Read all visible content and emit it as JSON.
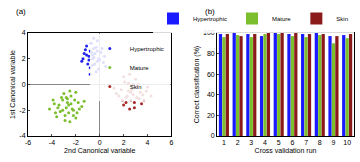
{
  "chart_data": [
    {
      "type": "scatter",
      "title": "(a)",
      "x_label": "2nd Canonical variable",
      "y_label": "1st Canonical variable",
      "xlim": [
        -6,
        6
      ],
      "xticks": [
        -6,
        -4,
        -2,
        0,
        2,
        4,
        6
      ],
      "ylim": [
        -4,
        4
      ],
      "yticks": [
        -4,
        -2,
        0,
        2,
        4
      ],
      "legend": "upper right",
      "grid": false,
      "series": [
        {
          "name": "Hypertrophic",
          "color": "#2222ee",
          "x": [
            -0.5,
            -0.8,
            -0.2,
            -1.1,
            0.1,
            -0.6,
            -0.9,
            -0.3,
            0.3,
            -1.4,
            -0.7,
            -0.4,
            -0.1,
            -1.0,
            -0.5,
            0.4,
            -1.2,
            -0.8,
            -0.2,
            -0.6,
            0.0,
            -0.9,
            -0.3,
            -1.5,
            -0.7,
            0.2,
            -0.4,
            -1.1,
            -0.6,
            -0.2,
            -0.8,
            0.5,
            -1.3,
            -0.5,
            -0.1
          ],
          "y": [
            2.1,
            2.6,
            1.8,
            2.3,
            2.5,
            1.5,
            1.9,
            2.9,
            1.7,
            2.0,
            3.2,
            2.4,
            1.2,
            1.6,
            2.8,
            2.2,
            2.7,
            1.3,
            3.4,
            2.0,
            1.9,
            2.2,
            1.0,
            1.8,
            2.5,
            2.8,
            1.6,
            3.0,
            2.3,
            2.6,
            0.8,
            1.4,
            2.4,
            3.6,
            2.0
          ]
        },
        {
          "name": "Mature",
          "color": "#7cbf2e",
          "x": [
            -2.6,
            -3.1,
            -2.2,
            -3.5,
            -1.8,
            -2.9,
            -2.4,
            -3.8,
            -2.0,
            -2.7,
            -3.3,
            -1.5,
            -2.5,
            -3.0,
            -4.2,
            -2.1,
            -2.8,
            -3.6,
            -1.9,
            -2.4,
            -3.2,
            -2.6,
            -1.3,
            -3.9,
            -2.3,
            -2.9,
            -3.4,
            -2.0,
            -2.7,
            -3.1,
            -1.7,
            -2.5,
            -3.7,
            -2.2,
            -2.8
          ],
          "y": [
            -1.6,
            -1.2,
            -2.0,
            -1.8,
            -1.4,
            -2.4,
            -0.9,
            -1.5,
            -2.6,
            -1.1,
            -2.1,
            -1.7,
            -2.9,
            -0.7,
            -1.9,
            -1.2,
            -1.8,
            -2.5,
            -2.2,
            -1.5,
            -1.0,
            -2.2,
            -1.3,
            -1.2,
            -1.9,
            -2.8,
            -1.6,
            -0.6,
            -1.4,
            -2.0,
            -1.9,
            -0.5,
            -2.2,
            -2.4,
            -1.0
          ]
        },
        {
          "name": "Skin",
          "color": "#a82828",
          "x": [
            2.6,
            3.1,
            2.2,
            3.6,
            1.8,
            2.9,
            2.4,
            3.9,
            2.0,
            2.7,
            3.3,
            1.4,
            2.5,
            3.0,
            4.3,
            2.1,
            2.8,
            3.5,
            1.9,
            2.4,
            3.2,
            2.6,
            1.2,
            4.0,
            2.3,
            2.9,
            3.4,
            2.0,
            2.7,
            3.1,
            1.6,
            2.5,
            3.7,
            2.2,
            2.8
          ],
          "y": [
            -0.6,
            -0.2,
            -1.0,
            -0.8,
            -0.4,
            -1.4,
            0.1,
            -0.5,
            -1.6,
            -0.1,
            -1.1,
            -0.7,
            -1.9,
            0.4,
            -0.9,
            0.2,
            -0.8,
            -1.5,
            -1.2,
            -0.5,
            0.0,
            -1.2,
            -0.3,
            -0.2,
            -0.9,
            -1.8,
            -0.6,
            0.6,
            -0.4,
            -1.0,
            -0.9,
            0.8,
            -1.2,
            -1.4,
            0.0
          ]
        }
      ]
    },
    {
      "type": "bar",
      "title": "(b)",
      "x_label": "Cross validation run",
      "y_label": "Correct classification (%)",
      "categories": [
        "1",
        "2",
        "3",
        "4",
        "5",
        "6",
        "7",
        "8",
        "9",
        "10"
      ],
      "ylim": [
        0,
        100
      ],
      "yticks": [
        0,
        20,
        40,
        60,
        80,
        100
      ],
      "legend": "top",
      "grid": false,
      "series": [
        {
          "name": "Hypertrophic",
          "color": "#1a1aff",
          "values": [
            99,
            100,
            99,
            97,
            100,
            99,
            99,
            100,
            97,
            98
          ]
        },
        {
          "name": "Mature",
          "color": "#7cbf2e",
          "values": [
            96,
            98,
            96,
            99,
            99,
            97,
            96,
            98,
            90,
            95
          ]
        },
        {
          "name": "Skin",
          "color": "#8b1a1a",
          "values": [
            99,
            97,
            99,
            100,
            100,
            100,
            99,
            99,
            97,
            99
          ]
        }
      ]
    }
  ]
}
